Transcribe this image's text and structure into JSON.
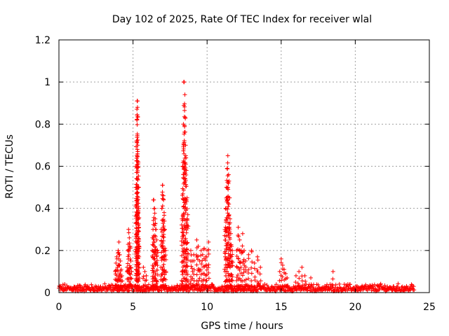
{
  "chart_data": {
    "type": "scatter",
    "title": "Day 102 of 2025, Rate Of TEC Index for receiver wlal",
    "xlabel": "GPS time / hours",
    "ylabel": "ROTI / TECUs",
    "xlim": [
      0,
      25
    ],
    "ylim": [
      0,
      1.2
    ],
    "x_ticks": [
      "0",
      "5",
      "10",
      "15",
      "20",
      "25"
    ],
    "y_ticks": [
      "0",
      "0.2",
      "0.4",
      "0.6",
      "0.8",
      "1",
      "1.2"
    ],
    "grid": true,
    "marker": "plus",
    "color": "#ff0000",
    "baseline": {
      "x_start": 0,
      "x_end": 24,
      "level": 0.02,
      "spread": 0.04
    },
    "series": [
      {
        "x": [
          3.8,
          3.85,
          3.9,
          3.95,
          4.0,
          4.05,
          4.1,
          4.15,
          4.2,
          4.25,
          4.6,
          4.65,
          4.7,
          4.75,
          4.8,
          4.85,
          4.9,
          5.2,
          5.22,
          5.24,
          5.26,
          5.28,
          5.3,
          5.32,
          5.34,
          5.36,
          5.38,
          5.4,
          5.7,
          5.8,
          5.9,
          6.3,
          6.35,
          6.4,
          6.45,
          6.5,
          6.55,
          6.6,
          6.65,
          6.9,
          6.95,
          7.0,
          7.05,
          7.1,
          7.15,
          7.2,
          8.3,
          8.35,
          8.4,
          8.45,
          8.5,
          8.55,
          8.6,
          8.65,
          8.7,
          8.9,
          9.0,
          9.1,
          9.3,
          9.4,
          9.5,
          9.6,
          9.7,
          9.8,
          9.9,
          10.0,
          10.1,
          11.2,
          11.25,
          11.3,
          11.35,
          11.4,
          11.45,
          11.5,
          11.55,
          11.6,
          11.65,
          11.7,
          12.0,
          12.1,
          12.2,
          12.3,
          12.4,
          12.5,
          12.6,
          12.8,
          13.0,
          13.2,
          13.4,
          13.6,
          14.9,
          15.0,
          15.1,
          15.2,
          15.3,
          15.4,
          16.0,
          16.2,
          16.4,
          16.6,
          17.0,
          18.5
        ],
        "y": [
          0.1,
          0.14,
          0.17,
          0.12,
          0.2,
          0.24,
          0.18,
          0.15,
          0.11,
          0.08,
          0.12,
          0.2,
          0.3,
          0.26,
          0.22,
          0.15,
          0.1,
          0.5,
          0.6,
          0.72,
          0.82,
          0.91,
          0.88,
          0.7,
          0.62,
          0.5,
          0.4,
          0.31,
          0.12,
          0.1,
          0.08,
          0.2,
          0.3,
          0.44,
          0.4,
          0.35,
          0.3,
          0.25,
          0.2,
          0.3,
          0.4,
          0.51,
          0.46,
          0.38,
          0.3,
          0.2,
          0.35,
          0.6,
          0.8,
          1.0,
          0.94,
          0.7,
          0.58,
          0.45,
          0.37,
          0.2,
          0.15,
          0.18,
          0.25,
          0.22,
          0.15,
          0.2,
          0.18,
          0.21,
          0.17,
          0.2,
          0.24,
          0.3,
          0.4,
          0.5,
          0.59,
          0.65,
          0.56,
          0.45,
          0.35,
          0.28,
          0.22,
          0.2,
          0.2,
          0.31,
          0.25,
          0.2,
          0.28,
          0.2,
          0.15,
          0.18,
          0.2,
          0.14,
          0.17,
          0.12,
          0.1,
          0.16,
          0.13,
          0.11,
          0.09,
          0.07,
          0.08,
          0.1,
          0.12,
          0.08,
          0.07,
          0.1
        ]
      }
    ]
  }
}
